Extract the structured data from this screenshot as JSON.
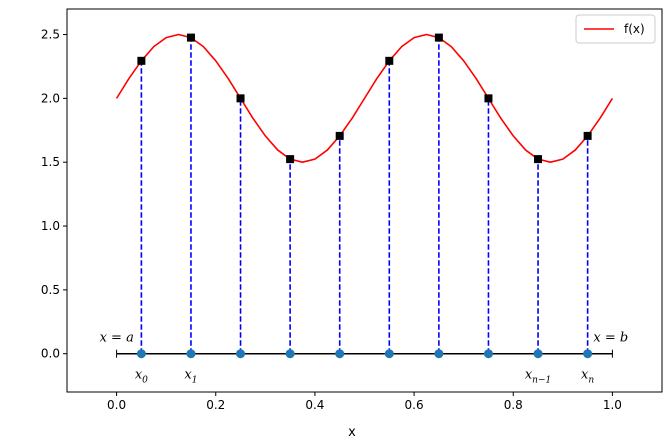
{
  "chart_data": {
    "type": "line",
    "title": "",
    "xlabel": "x",
    "ylabel": "",
    "xlim": [
      -0.1,
      1.1
    ],
    "ylim": [
      -0.3,
      2.7
    ],
    "xticks": [
      0.0,
      0.2,
      0.4,
      0.6,
      0.8,
      1.0
    ],
    "xtick_labels": [
      "0.0",
      "0.2",
      "0.4",
      "0.6",
      "0.8",
      "1.0"
    ],
    "yticks": [
      0.0,
      0.5,
      1.0,
      1.5,
      2.0,
      2.5
    ],
    "ytick_labels": [
      "0.0",
      "0.5",
      "1.0",
      "1.5",
      "2.0",
      "2.5"
    ],
    "grid": false,
    "legend_position": "top-right",
    "series": [
      {
        "name": "f(x)",
        "color": "#ff0000",
        "style": "solid line",
        "x": [
          0.0,
          0.025,
          0.05,
          0.075,
          0.1,
          0.125,
          0.15,
          0.175,
          0.2,
          0.225,
          0.25,
          0.275,
          0.3,
          0.325,
          0.35,
          0.375,
          0.4,
          0.425,
          0.45,
          0.475,
          0.5,
          0.525,
          0.55,
          0.575,
          0.6,
          0.625,
          0.65,
          0.675,
          0.7,
          0.725,
          0.75,
          0.775,
          0.8,
          0.825,
          0.85,
          0.875,
          0.9,
          0.925,
          0.95,
          0.975,
          1.0
        ],
        "y": [
          2.0,
          2.156,
          2.294,
          2.405,
          2.476,
          2.5,
          2.476,
          2.405,
          2.294,
          2.156,
          2.0,
          1.844,
          1.706,
          1.595,
          1.524,
          1.5,
          1.524,
          1.595,
          1.706,
          1.844,
          2.0,
          2.156,
          2.294,
          2.405,
          2.476,
          2.5,
          2.476,
          2.405,
          2.294,
          2.156,
          2.0,
          1.844,
          1.706,
          1.595,
          1.524,
          1.5,
          1.524,
          1.595,
          1.706,
          1.844,
          2.0
        ]
      },
      {
        "name": "",
        "style": "square markers",
        "color": "#000000",
        "x": [
          0.05,
          0.15,
          0.25,
          0.35,
          0.45,
          0.55,
          0.65,
          0.75,
          0.85,
          0.95
        ],
        "y": [
          2.294,
          2.476,
          2.0,
          1.524,
          1.706,
          2.294,
          2.476,
          2.0,
          1.524,
          1.706
        ]
      },
      {
        "name": "",
        "style": "dashed vertical lines",
        "color": "#0000ff",
        "x": [
          0.05,
          0.15,
          0.25,
          0.35,
          0.45,
          0.55,
          0.65,
          0.75,
          0.85,
          0.95
        ],
        "y": [
          2.294,
          2.476,
          2.0,
          1.524,
          1.706,
          2.294,
          2.476,
          2.0,
          1.524,
          1.706
        ]
      },
      {
        "name": "",
        "style": "circle markers on baseline",
        "color": "#1f77b4",
        "x": [
          0.05,
          0.15,
          0.25,
          0.35,
          0.45,
          0.55,
          0.65,
          0.75,
          0.85,
          0.95
        ],
        "y": [
          0,
          0,
          0,
          0,
          0,
          0,
          0,
          0,
          0,
          0
        ]
      }
    ],
    "interval": {
      "a": 0.0,
      "b": 1.0,
      "label_a": "x = a",
      "label_b": "x = b"
    },
    "annotations": [
      {
        "x": 0.05,
        "base": "x",
        "sub": "0"
      },
      {
        "x": 0.15,
        "base": "x",
        "sub": "1"
      },
      {
        "x": 0.85,
        "base": "x",
        "sub": "n−1"
      },
      {
        "x": 0.95,
        "base": "x",
        "sub": "n"
      }
    ]
  }
}
